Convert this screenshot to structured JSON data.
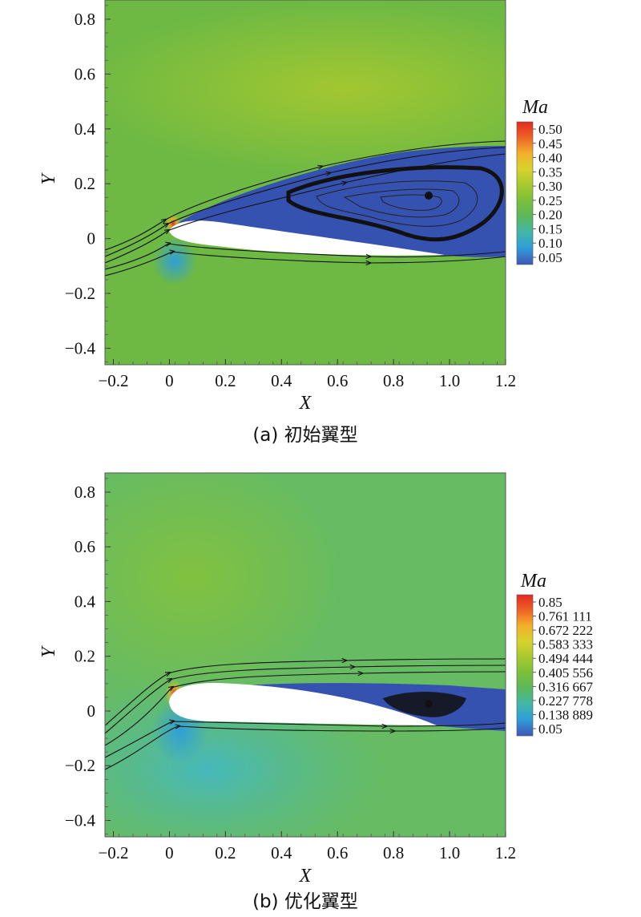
{
  "chart_data": [
    {
      "type": "heatmap",
      "caption": "(a) 初始翼型",
      "xlabel": "X",
      "ylabel": "Y",
      "xlim": [
        -0.23,
        1.2
      ],
      "ylim": [
        -0.46,
        0.87
      ],
      "xticks": [
        "−0.2",
        "0",
        "0.2",
        "0.4",
        "0.6",
        "0.8",
        "1.0",
        "1.2"
      ],
      "xtick_values": [
        -0.2,
        0,
        0.2,
        0.4,
        0.6,
        0.8,
        1.0,
        1.2
      ],
      "yticks": [
        "0.8",
        "0.6",
        "0.4",
        "0.2",
        "0",
        "−0.2",
        "−0.4"
      ],
      "ytick_values": [
        0.8,
        0.6,
        0.4,
        0.2,
        0,
        -0.2,
        -0.4
      ],
      "legend_title": "Ma",
      "legend_labels": [
        "0.50",
        "0.45",
        "0.40",
        "0.35",
        "0.30",
        "0.25",
        "0.20",
        "0.15",
        "0.10",
        "0.05"
      ],
      "legend_range": [
        0.05,
        0.5
      ],
      "background_level": 0.3,
      "separation_vortex_center": [
        0.95,
        0.15
      ]
    },
    {
      "type": "heatmap",
      "caption": "(b) 优化翼型",
      "xlabel": "X",
      "ylabel": "Y",
      "xlim": [
        -0.23,
        1.2
      ],
      "ylim": [
        -0.46,
        0.87
      ],
      "xticks": [
        "−0.2",
        "0",
        "0.2",
        "0.4",
        "0.6",
        "0.8",
        "1.0",
        "1.2"
      ],
      "xtick_values": [
        -0.2,
        0,
        0.2,
        0.4,
        0.6,
        0.8,
        1.0,
        1.2
      ],
      "yticks": [
        "0.8",
        "0.6",
        "0.4",
        "0.2",
        "0",
        "−0.2",
        "−0.4"
      ],
      "ytick_values": [
        0.8,
        0.6,
        0.4,
        0.2,
        0,
        -0.2,
        -0.4
      ],
      "legend_title": "Ma",
      "legend_labels": [
        "0.85",
        "0.761 111",
        "0.672 222",
        "0.583 333",
        "0.494 444",
        "0.405 556",
        "0.316 667",
        "0.227 778",
        "0.138 889",
        "0.05"
      ],
      "legend_range": [
        0.05,
        0.85
      ],
      "background_level": 0.45,
      "separation_vortex_center": [
        0.95,
        0.03
      ]
    }
  ],
  "colors": {
    "colormap": [
      "#3f55b8",
      "#2f9fd8",
      "#42b8a6",
      "#5cb85a",
      "#7cbf3a",
      "#a8c92e",
      "#d8d22c",
      "#f2b02a",
      "#ee6425",
      "#e32825"
    ],
    "field_a": "#6db944",
    "field_b": "#66bb63",
    "separation": "#3552b0",
    "airfoil": "#ffffff",
    "streamline": "#111111"
  }
}
